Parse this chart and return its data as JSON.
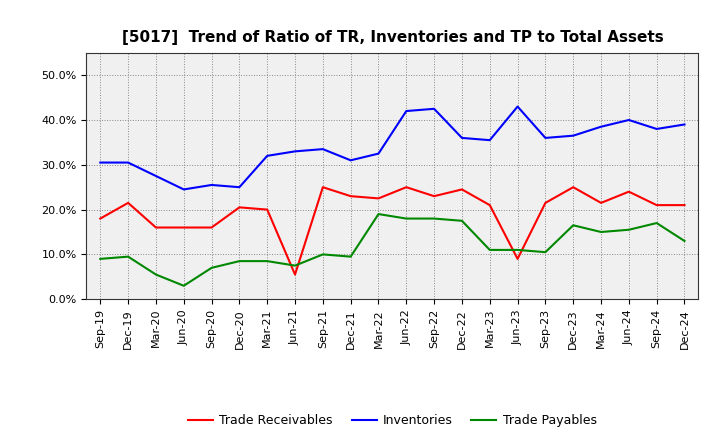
{
  "title": "[5017]  Trend of Ratio of TR, Inventories and TP to Total Assets",
  "x_labels": [
    "Sep-19",
    "Dec-19",
    "Mar-20",
    "Jun-20",
    "Sep-20",
    "Dec-20",
    "Mar-21",
    "Jun-21",
    "Sep-21",
    "Dec-21",
    "Mar-22",
    "Jun-22",
    "Sep-22",
    "Dec-22",
    "Mar-23",
    "Jun-23",
    "Sep-23",
    "Dec-23",
    "Mar-24",
    "Jun-24",
    "Sep-24",
    "Dec-24"
  ],
  "trade_receivables": [
    18.0,
    21.5,
    16.0,
    16.0,
    16.0,
    20.5,
    20.0,
    5.5,
    25.0,
    23.0,
    22.5,
    25.0,
    23.0,
    24.5,
    21.0,
    9.0,
    21.5,
    25.0,
    21.5,
    24.0,
    21.0,
    21.0
  ],
  "inventories": [
    30.5,
    30.5,
    27.5,
    24.5,
    25.5,
    25.0,
    32.0,
    33.0,
    33.5,
    31.0,
    32.5,
    42.0,
    42.5,
    36.0,
    35.5,
    43.0,
    36.0,
    36.5,
    38.5,
    40.0,
    38.0,
    39.0
  ],
  "trade_payables": [
    9.0,
    9.5,
    5.5,
    3.0,
    7.0,
    8.5,
    8.5,
    7.5,
    10.0,
    9.5,
    19.0,
    18.0,
    18.0,
    17.5,
    11.0,
    11.0,
    10.5,
    16.5,
    15.0,
    15.5,
    17.0,
    13.0
  ],
  "tr_color": "#ff0000",
  "inv_color": "#0000ff",
  "tp_color": "#008800",
  "ylim": [
    0,
    55
  ],
  "yticks": [
    0,
    10,
    20,
    30,
    40,
    50
  ],
  "ytick_labels": [
    "0.0%",
    "10.0%",
    "20.0%",
    "30.0%",
    "40.0%",
    "50.0%"
  ],
  "bg_color": "#ffffff",
  "plot_bg_color": "#f0f0f0",
  "grid_color": "#888888",
  "legend_labels": [
    "Trade Receivables",
    "Inventories",
    "Trade Payables"
  ],
  "title_fontsize": 11,
  "tick_fontsize": 8,
  "legend_fontsize": 9
}
